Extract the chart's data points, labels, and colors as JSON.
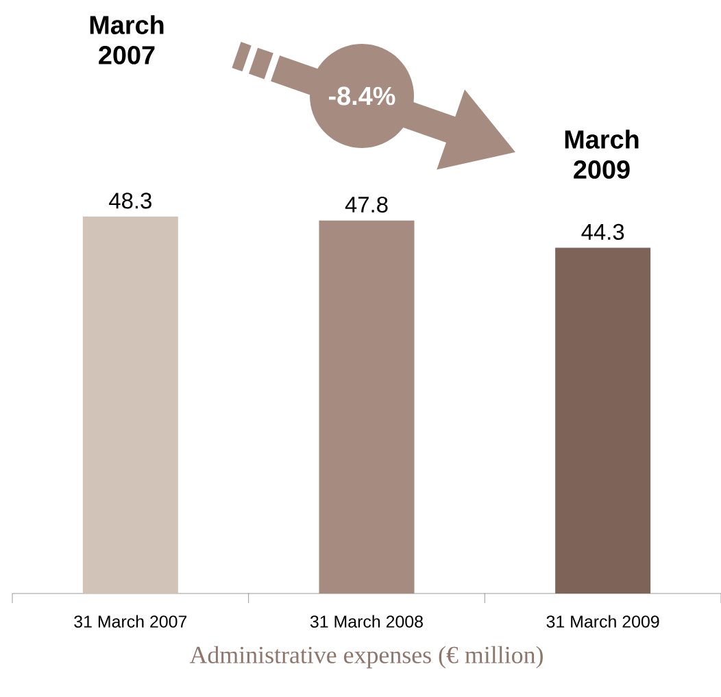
{
  "chart_data": {
    "type": "bar",
    "xlabel": "Administrative expenses (€ million)",
    "categories": [
      "31 March 2007",
      "31 March 2008",
      "31 March 2009"
    ],
    "values": [
      48.3,
      47.8,
      44.3
    ],
    "colors": [
      "#d2c3b9",
      "#a68c80",
      "#7d6358"
    ],
    "data_labels": true,
    "annotations": [
      "March 2007",
      "-8.4%",
      "March 2009"
    ]
  }
}
